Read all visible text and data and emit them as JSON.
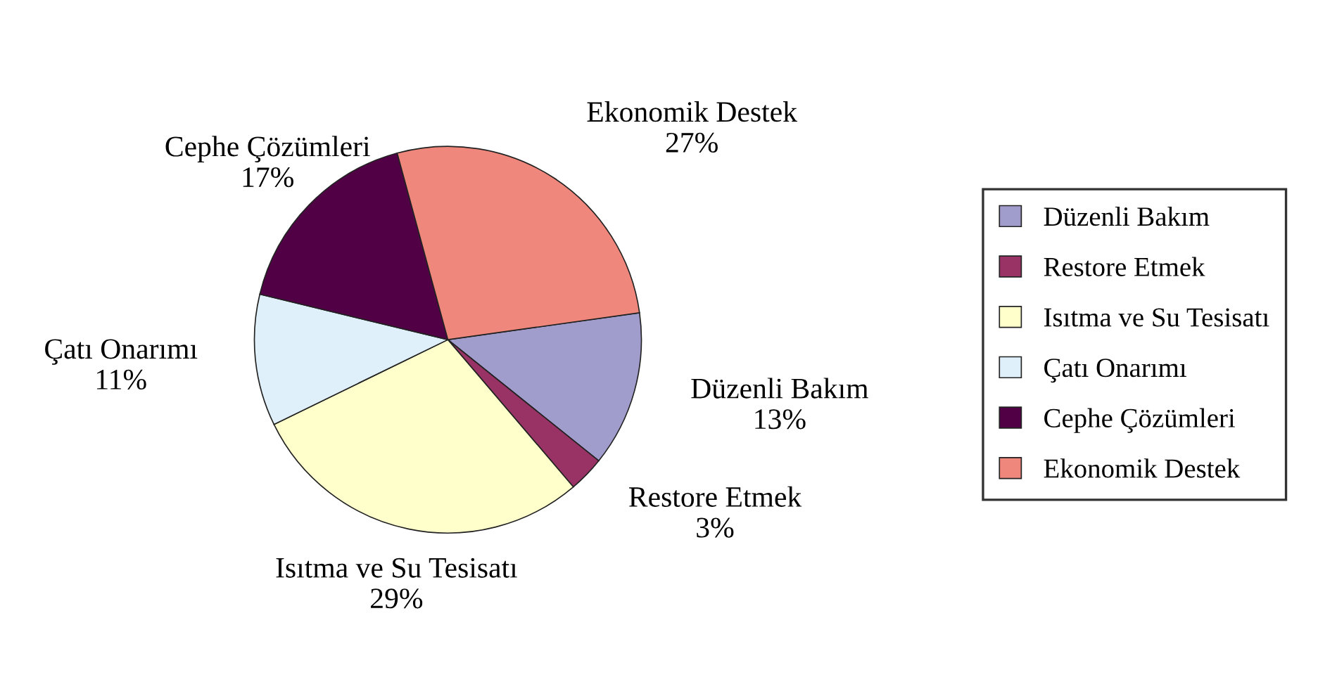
{
  "chart_data": {
    "type": "pie",
    "categories": [
      "Düzenli Bakım",
      "Restore Etmek",
      "Isıtma ve Su Tesisatı",
      "Çatı Onarımı",
      "Cephe Çözümleri",
      "Ekonomik Destek"
    ],
    "values": [
      13,
      3,
      29,
      11,
      17,
      27
    ],
    "value_labels": [
      "13%",
      "3%",
      "29%",
      "11%",
      "17%",
      "27%"
    ],
    "colors": [
      "#a09ccc",
      "#993366",
      "#ffffcc",
      "#e0f0fa",
      "#520046",
      "#f0877c"
    ],
    "legend": "right"
  }
}
